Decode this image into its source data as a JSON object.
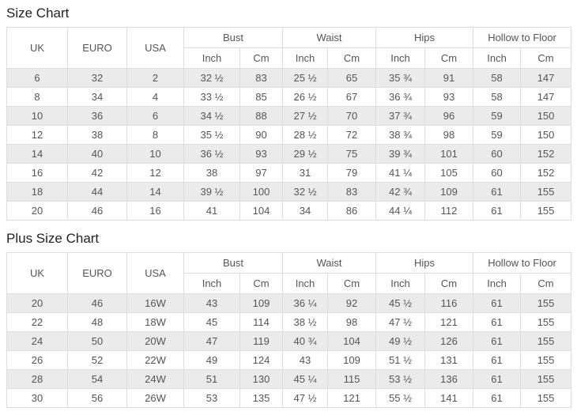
{
  "colors": {
    "row_stripe": "#ebebeb",
    "border": "#dddddd",
    "cell_text": "#555555",
    "title_text": "#222222"
  },
  "tables": [
    {
      "title": "Size Chart",
      "columns": [
        "UK",
        "EURO",
        "USA"
      ],
      "groups": [
        {
          "label": "Bust",
          "units": [
            "Inch",
            "Cm"
          ]
        },
        {
          "label": "Waist",
          "units": [
            "Inch",
            "Cm"
          ]
        },
        {
          "label": "Hips",
          "units": [
            "Inch",
            "Cm"
          ]
        },
        {
          "label": "Hollow to Floor",
          "units": [
            "Inch",
            "Cm"
          ]
        }
      ],
      "rows": [
        [
          "6",
          "32",
          "2",
          "32 ½",
          "83",
          "25 ½",
          "65",
          "35 ¾",
          "91",
          "58",
          "147"
        ],
        [
          "8",
          "34",
          "4",
          "33 ½",
          "85",
          "26 ½",
          "67",
          "36 ¾",
          "93",
          "58",
          "147"
        ],
        [
          "10",
          "36",
          "6",
          "34 ½",
          "88",
          "27 ½",
          "70",
          "37 ¾",
          "96",
          "59",
          "150"
        ],
        [
          "12",
          "38",
          "8",
          "35 ½",
          "90",
          "28 ½",
          "72",
          "38 ¾",
          "98",
          "59",
          "150"
        ],
        [
          "14",
          "40",
          "10",
          "36 ½",
          "93",
          "29 ½",
          "75",
          "39 ¾",
          "101",
          "60",
          "152"
        ],
        [
          "16",
          "42",
          "12",
          "38",
          "97",
          "31",
          "79",
          "41 ¼",
          "105",
          "60",
          "152"
        ],
        [
          "18",
          "44",
          "14",
          "39 ½",
          "100",
          "32 ½",
          "83",
          "42 ¾",
          "109",
          "61",
          "155"
        ],
        [
          "20",
          "46",
          "16",
          "41",
          "104",
          "34",
          "86",
          "44 ¼",
          "112",
          "61",
          "155"
        ]
      ]
    },
    {
      "title": "Plus Size Chart",
      "columns": [
        "UK",
        "EURO",
        "USA"
      ],
      "groups": [
        {
          "label": "Bust",
          "units": [
            "Inch",
            "Cm"
          ]
        },
        {
          "label": "Waist",
          "units": [
            "Inch",
            "Cm"
          ]
        },
        {
          "label": "Hips",
          "units": [
            "Inch",
            "Cm"
          ]
        },
        {
          "label": "Hollow to Floor",
          "units": [
            "Inch",
            "Cm"
          ]
        }
      ],
      "rows": [
        [
          "20",
          "46",
          "16W",
          "43",
          "109",
          "36 ¼",
          "92",
          "45 ½",
          "116",
          "61",
          "155"
        ],
        [
          "22",
          "48",
          "18W",
          "45",
          "114",
          "38 ½",
          "98",
          "47 ½",
          "121",
          "61",
          "155"
        ],
        [
          "24",
          "50",
          "20W",
          "47",
          "119",
          "40 ¾",
          "104",
          "49 ½",
          "126",
          "61",
          "155"
        ],
        [
          "26",
          "52",
          "22W",
          "49",
          "124",
          "43",
          "109",
          "51 ½",
          "131",
          "61",
          "155"
        ],
        [
          "28",
          "54",
          "24W",
          "51",
          "130",
          "45 ¼",
          "115",
          "53 ½",
          "136",
          "61",
          "155"
        ],
        [
          "30",
          "56",
          "26W",
          "53",
          "135",
          "47 ½",
          "121",
          "55 ½",
          "141",
          "61",
          "155"
        ]
      ]
    }
  ]
}
